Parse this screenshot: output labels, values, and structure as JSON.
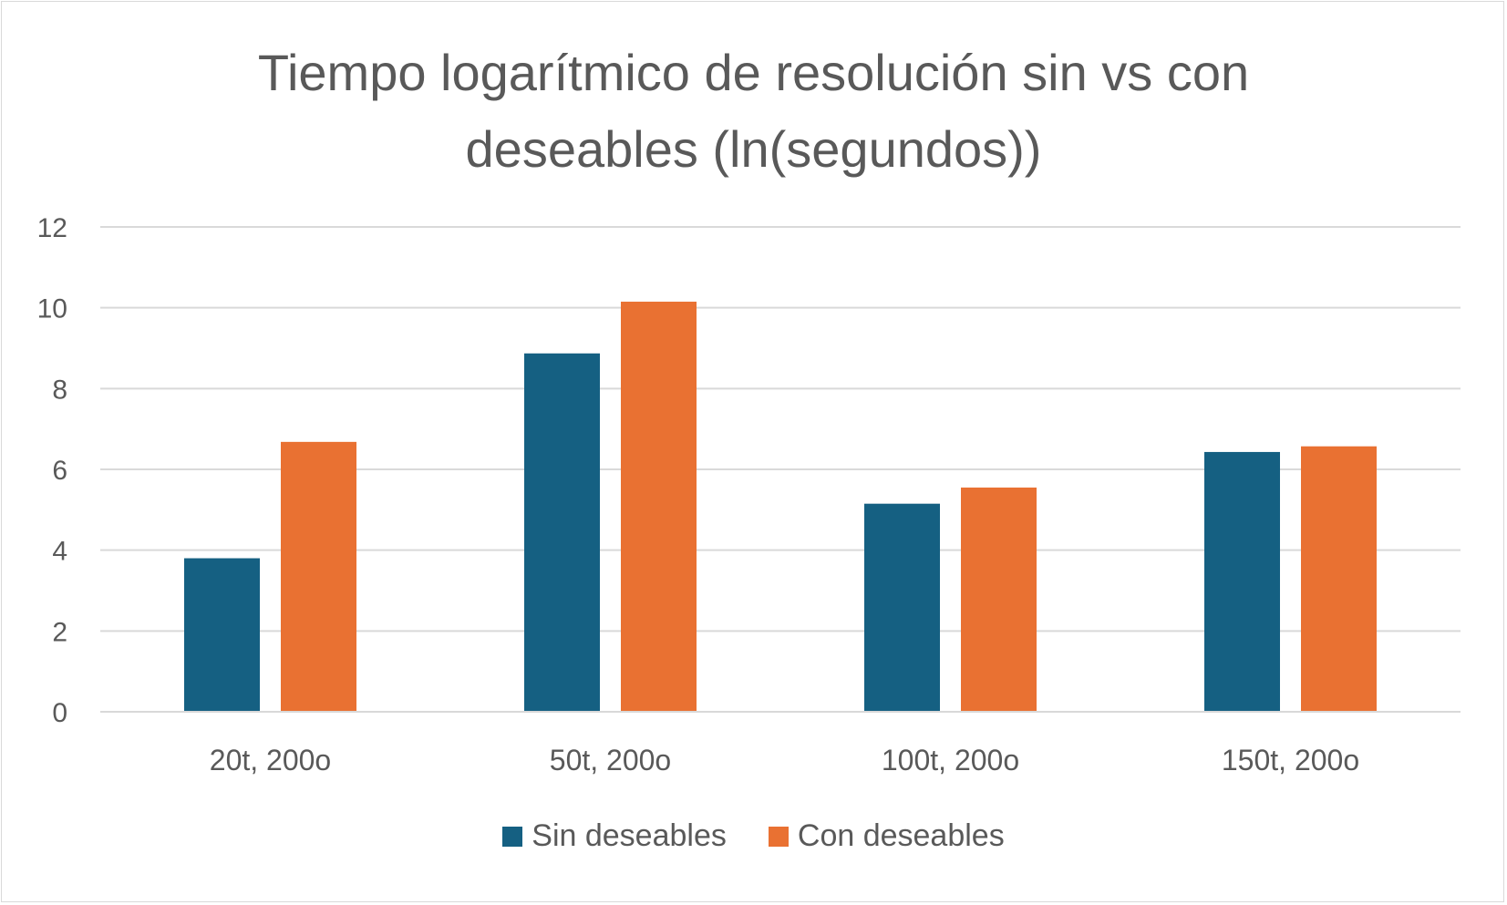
{
  "chart_data": {
    "type": "bar",
    "title": "Tiempo logarítmico de resolución sin vs con\ndeseables (ln(segundos))",
    "categories": [
      "20t, 200o",
      "50t, 200o",
      "100t, 200o",
      "150t, 200o"
    ],
    "series": [
      {
        "name": "Sin deseables",
        "values": [
          3.8,
          8.87,
          5.15,
          6.43
        ],
        "color": "#156082"
      },
      {
        "name": "Con deseables",
        "values": [
          6.68,
          10.15,
          5.55,
          6.57
        ],
        "color": "#E97132"
      }
    ],
    "ylim": [
      0,
      12
    ],
    "yticks": [
      0,
      2,
      4,
      6,
      8,
      10,
      12
    ],
    "grid": true,
    "legend_position": "bottom"
  }
}
